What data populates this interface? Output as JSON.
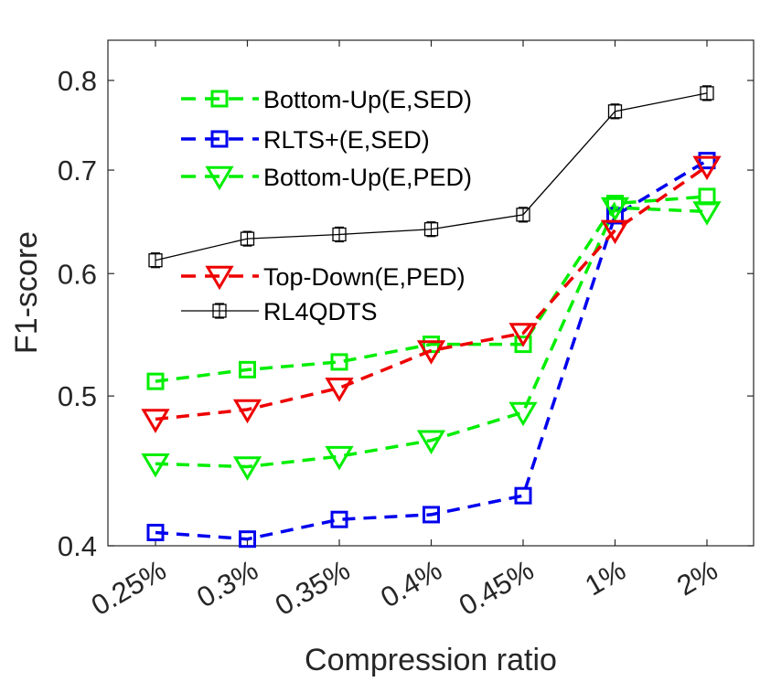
{
  "chart_data": {
    "type": "line",
    "xlabel": "Compression ratio",
    "ylabel": "F1-score",
    "categories": [
      "0.25%",
      "0.3%",
      "0.35%",
      "0.4%",
      "0.45%",
      "1%",
      "2%"
    ],
    "yscale": "log",
    "ylim": [
      0.4,
      0.85
    ],
    "yticks": [
      0.4,
      0.5,
      0.6,
      0.7,
      0.8
    ],
    "ytick_labels": [
      "0.4",
      "0.5",
      "0.6",
      "0.7",
      "0.8"
    ],
    "grid": false,
    "legend_position": "top-left",
    "series": [
      {
        "name": "Bottom-Up(E,SED)",
        "color": "#00ee00",
        "linestyle": "dashed",
        "marker": "square",
        "values": [
          0.511,
          0.52,
          0.526,
          0.54,
          0.54,
          0.666,
          0.673
        ]
      },
      {
        "name": "RLTS+(E,SED)",
        "color": "#0000ee",
        "linestyle": "dashed",
        "marker": "square",
        "values": [
          0.408,
          0.404,
          0.416,
          0.419,
          0.431,
          0.654,
          0.71
        ]
      },
      {
        "name": "Bottom-Up(E,PED)",
        "color": "#00ee00",
        "linestyle": "dashed",
        "marker": "triangle-down",
        "values": [
          0.452,
          0.45,
          0.457,
          0.468,
          0.488,
          0.662,
          0.658
        ]
      },
      {
        "name": "Top-Down(E,PED)",
        "color": "#ee0000",
        "linestyle": "dashed",
        "marker": "triangle-down",
        "values": [
          0.483,
          0.49,
          0.506,
          0.535,
          0.549,
          0.64,
          0.704
        ]
      },
      {
        "name": "RL4QDTS",
        "color": "#000000",
        "linestyle": "solid",
        "marker": "square-errorbar",
        "values": [
          0.612,
          0.632,
          0.636,
          0.641,
          0.655,
          0.764,
          0.785
        ]
      }
    ]
  }
}
